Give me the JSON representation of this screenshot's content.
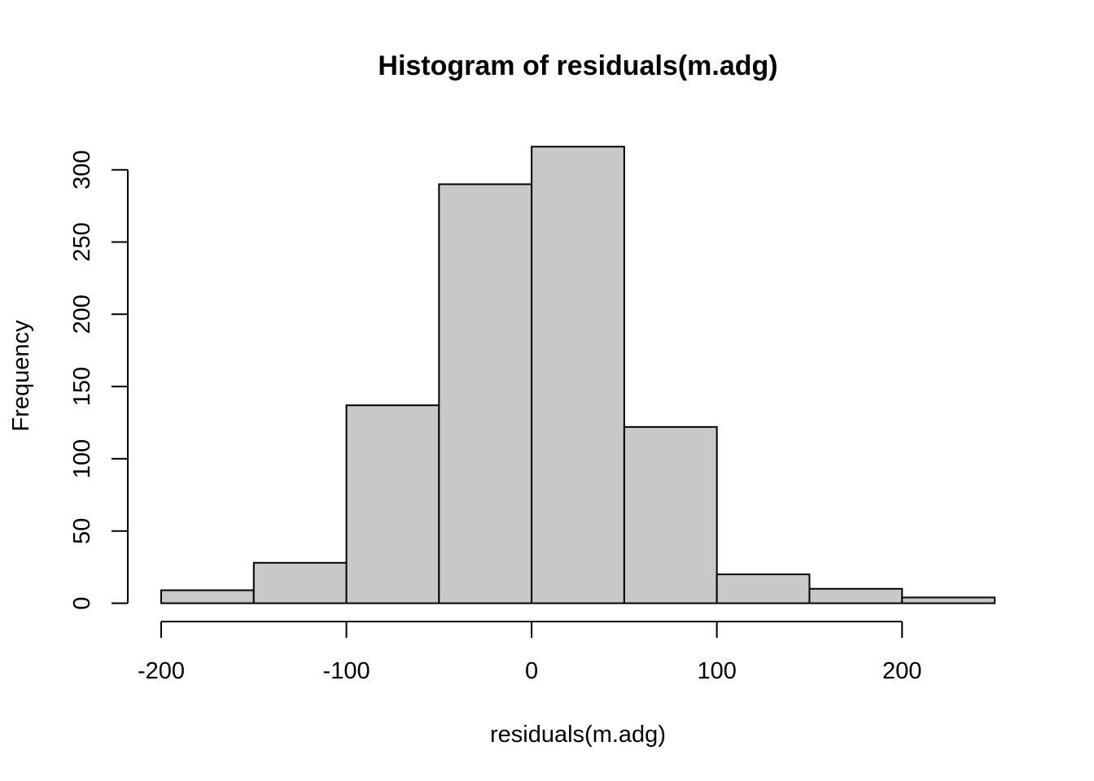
{
  "chart_data": {
    "type": "bar",
    "title": "Histogram of residuals(m.adg)",
    "xlabel": "residuals(m.adg)",
    "ylabel": "Frequency",
    "bin_edges": [
      -200,
      -150,
      -100,
      -50,
      0,
      50,
      100,
      150,
      200,
      250
    ],
    "values": [
      9,
      28,
      137,
      290,
      316,
      122,
      20,
      10,
      4
    ],
    "xlim": [
      -200,
      250
    ],
    "ylim": [
      0,
      316
    ],
    "x_ticks": [
      -200,
      -100,
      0,
      100,
      200
    ],
    "y_ticks": [
      0,
      50,
      100,
      150,
      200,
      250,
      300
    ],
    "grid": false,
    "colors": {
      "bar_fill": "#c8c8c8",
      "bar_stroke": "#000000"
    }
  }
}
